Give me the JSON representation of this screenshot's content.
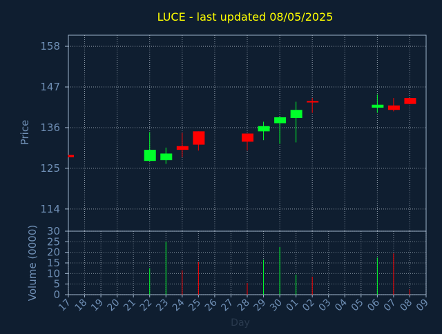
{
  "title": "LUCE - last updated 08/05/2025",
  "colors": {
    "background": "#0f1e30",
    "frame": "#9eb4cc",
    "grid": "#c8d4e0",
    "title": "#ffff00",
    "axis_text": "#6f8fb5",
    "up": "#00ff2a",
    "down": "#ff0000"
  },
  "chart_data": [
    {
      "type": "candlestick",
      "ylabel": "Price",
      "ylim": [
        108,
        161
      ],
      "yticks": [
        114,
        125,
        136,
        147,
        158
      ],
      "grid": true,
      "candles": [
        {
          "x": "17",
          "open": 128.6,
          "close": 128.0,
          "high": 128.6,
          "low": 128.0
        },
        {
          "x": "22",
          "open": 127.0,
          "close": 130.0,
          "high": 134.8,
          "low": 127.0
        },
        {
          "x": "23",
          "open": 127.2,
          "close": 129.0,
          "high": 130.6,
          "low": 126.2
        },
        {
          "x": "24",
          "open": 131.0,
          "close": 130.0,
          "high": 134.6,
          "low": 128.0
        },
        {
          "x": "25",
          "open": 135.0,
          "close": 131.4,
          "high": 135.0,
          "low": 129.8
        },
        {
          "x": "28",
          "open": 134.4,
          "close": 132.2,
          "high": 134.4,
          "low": 129.8
        },
        {
          "x": "29",
          "open": 135.0,
          "close": 136.4,
          "high": 137.6,
          "low": 132.6
        },
        {
          "x": "30",
          "open": 137.2,
          "close": 138.8,
          "high": 139.0,
          "low": 131.6
        },
        {
          "x": "01",
          "open": 138.6,
          "close": 140.8,
          "high": 143.0,
          "low": 132.0
        },
        {
          "x": "02",
          "open": 143.2,
          "close": 142.8,
          "high": 144.0,
          "low": 140.0
        },
        {
          "x": "06",
          "open": 141.4,
          "close": 142.2,
          "high": 145.0,
          "low": 140.0
        },
        {
          "x": "07",
          "open": 142.0,
          "close": 140.8,
          "high": 144.0,
          "low": 140.4
        },
        {
          "x": "08",
          "open": 144.0,
          "close": 142.4,
          "high": 144.0,
          "low": 142.4
        }
      ]
    },
    {
      "type": "bar",
      "ylabel": "Volume (0000)",
      "xlabel": "Day",
      "ylim": [
        0,
        30
      ],
      "yticks": [
        0,
        5,
        10,
        15,
        20,
        25,
        30
      ],
      "grid": true,
      "categories": [
        "17",
        "18",
        "19",
        "20",
        "21",
        "22",
        "23",
        "24",
        "25",
        "26",
        "27",
        "28",
        "29",
        "30",
        "01",
        "02",
        "03",
        "04",
        "05",
        "06",
        "07",
        "08",
        "09"
      ],
      "bars": [
        {
          "x": "22",
          "value": 12.5,
          "direction": "up"
        },
        {
          "x": "23",
          "value": 25.0,
          "direction": "up"
        },
        {
          "x": "24",
          "value": 11.5,
          "direction": "down"
        },
        {
          "x": "25",
          "value": 15.5,
          "direction": "down"
        },
        {
          "x": "28",
          "value": 5.5,
          "direction": "down"
        },
        {
          "x": "29",
          "value": 16.5,
          "direction": "up"
        },
        {
          "x": "30",
          "value": 22.5,
          "direction": "up"
        },
        {
          "x": "01",
          "value": 9.5,
          "direction": "up"
        },
        {
          "x": "02",
          "value": 8.5,
          "direction": "down"
        },
        {
          "x": "06",
          "value": 17.5,
          "direction": "up"
        },
        {
          "x": "07",
          "value": 19.5,
          "direction": "down"
        },
        {
          "x": "08",
          "value": 2.5,
          "direction": "down"
        }
      ]
    }
  ]
}
